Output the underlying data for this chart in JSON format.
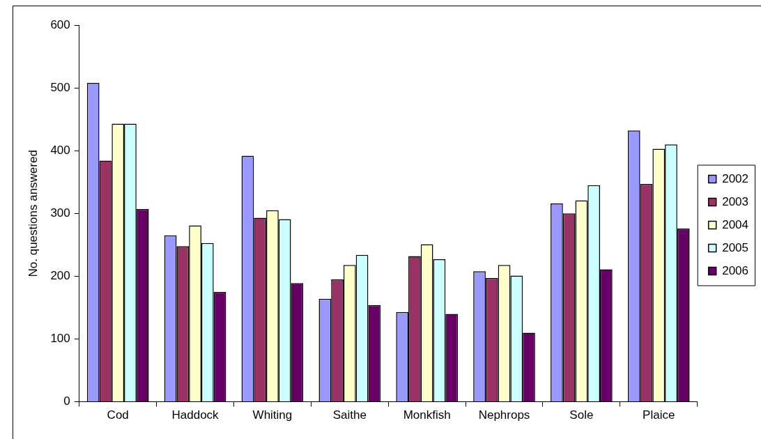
{
  "chart_data": {
    "type": "bar",
    "ylabel": "No. questions answered",
    "categories": [
      "Cod",
      "Haddock",
      "Whiting",
      "Saithe",
      "Monkfish",
      "Nephrops",
      "Sole",
      "Plaice"
    ],
    "series": [
      {
        "name": "2002",
        "color": "#9999ff",
        "values": [
          508,
          265,
          392,
          164,
          143,
          208,
          316,
          432
        ]
      },
      {
        "name": "2003",
        "color": "#993366",
        "values": [
          384,
          248,
          293,
          195,
          232,
          197,
          300,
          347
        ]
      },
      {
        "name": "2004",
        "color": "#ffffcc",
        "values": [
          443,
          281,
          305,
          218,
          251,
          218,
          321,
          403
        ]
      },
      {
        "name": "2005",
        "color": "#ccffff",
        "values": [
          443,
          253,
          291,
          234,
          227,
          201,
          345,
          410
        ]
      },
      {
        "name": "2006",
        "color": "#660066",
        "values": [
          307,
          175,
          189,
          154,
          140,
          110,
          211,
          276
        ]
      }
    ],
    "ylim": [
      0,
      600
    ],
    "yticks": [
      0,
      100,
      200,
      300,
      400,
      500,
      600
    ],
    "grid": false,
    "legend": "right"
  }
}
